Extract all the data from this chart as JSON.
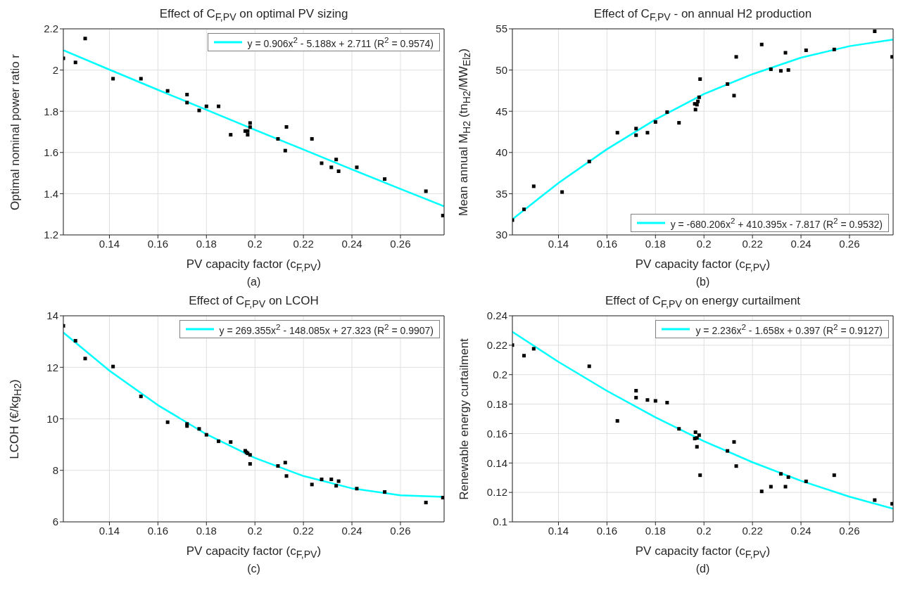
{
  "chart_data": [
    {
      "type": "scatter",
      "title": "Effect of C$_{F,PV}$ on optimal PV sizing",
      "xlabel": "PV capacity factor (c$_{F,PV}$)",
      "ylabel": "Optimal nominal power ratio r",
      "annotations": [
        "(a)"
      ],
      "xlim": [
        0.121,
        0.278
      ],
      "xticks": [
        0.14,
        0.16,
        0.18,
        0.2,
        0.22,
        0.24,
        0.26
      ],
      "ylim": [
        1.2,
        2.2
      ],
      "yticks": [
        1.2,
        1.4,
        1.6,
        1.8,
        2,
        2.2
      ],
      "grid": true,
      "legend": "top right",
      "series": [
        {
          "marker": "square",
          "color": "#000000",
          "x": [
            0.121,
            0.126,
            0.13,
            0.1415,
            0.153,
            0.164,
            0.172,
            0.172,
            0.177,
            0.18,
            0.185,
            0.19,
            0.196,
            0.197,
            0.197,
            0.198,
            0.198,
            0.2095,
            0.2125,
            0.213,
            0.2235,
            0.2275,
            0.2315,
            0.2335,
            0.2345,
            0.242,
            0.2535,
            0.2705,
            0.2775
          ],
          "values": [
            2.057,
            2.037,
            2.153,
            1.958,
            1.958,
            1.899,
            1.881,
            1.842,
            1.804,
            1.824,
            1.824,
            1.686,
            1.704,
            1.686,
            1.704,
            1.723,
            1.743,
            1.666,
            1.609,
            1.724,
            1.666,
            1.548,
            1.528,
            1.566,
            1.509,
            1.528,
            1.471,
            1.412,
            1.294
          ]
        },
        {
          "type": "line",
          "marker": "none",
          "name": "y  =  0.906x$^{2}$  -  5.188x  +  2.711  (R$^{2}$  =  0.9574)",
          "color": "#00ffff",
          "line_style": "solid",
          "x": [
            0.121,
            0.14,
            0.16,
            0.18,
            0.2,
            0.22,
            0.24,
            0.26,
            0.278
          ],
          "values": [
            2.096,
            2.002,
            1.904,
            1.807,
            1.71,
            1.614,
            1.518,
            1.423,
            1.339
          ]
        }
      ]
    },
    {
      "type": "scatter",
      "title": "Effect of C$_{F,PV}$ - on annual H2 production",
      "xlabel": "PV capacity factor (c$_{F,PV}$)",
      "ylabel": "Mean annual M$_{H2}$ (tn$_{H2}$/MW$_{Elz}$)",
      "annotations": [
        "(b)"
      ],
      "xlim": [
        0.121,
        0.278
      ],
      "xticks": [
        0.14,
        0.16,
        0.18,
        0.2,
        0.22,
        0.24,
        0.26
      ],
      "ylim": [
        30,
        55
      ],
      "yticks": [
        30,
        35,
        40,
        45,
        50,
        55
      ],
      "grid": true,
      "legend": "bottom right",
      "series": [
        {
          "marker": "square",
          "color": "#000000",
          "x": [
            0.121,
            0.1258,
            0.1298,
            0.1415,
            0.1527,
            0.1643,
            0.172,
            0.172,
            0.1767,
            0.18,
            0.1848,
            0.1897,
            0.1962,
            0.1965,
            0.1971,
            0.1975,
            0.198,
            0.1984,
            0.2097,
            0.2124,
            0.2133,
            0.2238,
            0.2276,
            0.2317,
            0.2336,
            0.2348,
            0.2421,
            0.2537,
            0.2704,
            0.2776
          ],
          "values": [
            31.8,
            33.1,
            35.9,
            35.2,
            38.9,
            42.4,
            42.9,
            42.1,
            42.4,
            43.7,
            44.9,
            43.6,
            45.9,
            45.2,
            45.8,
            46.2,
            46.7,
            48.9,
            48.3,
            46.9,
            51.6,
            53.1,
            50.1,
            49.9,
            52.1,
            50,
            52.4,
            52.5,
            54.7,
            51.6
          ]
        },
        {
          "type": "line",
          "marker": "none",
          "name": "y  =  -680.206x$^{2}$  +  410.395x  -  7.817  (R$^{2}$  =  0.9532)",
          "color": "#00ffff",
          "line_style": "solid",
          "x": [
            0.121,
            0.14,
            0.16,
            0.18,
            0.2,
            0.22,
            0.24,
            0.26,
            0.278
          ],
          "values": [
            31.9,
            36.3,
            40.4,
            44,
            47.1,
            49.5,
            51.5,
            52.9,
            53.7
          ]
        }
      ]
    },
    {
      "type": "scatter",
      "title": "Effect of C$_{F,PV}$ on LCOH",
      "xlabel": "PV capacity factor (c$_{F,PV}$)",
      "ylabel": "LCOH  (€/kg$_{H2}$)",
      "annotations": [
        "(c)"
      ],
      "xlim": [
        0.121,
        0.278
      ],
      "xticks": [
        0.14,
        0.16,
        0.18,
        0.2,
        0.22,
        0.24,
        0.26
      ],
      "ylim": [
        6,
        14
      ],
      "yticks": [
        6,
        8,
        10,
        12,
        14
      ],
      "grid": true,
      "legend": "top right",
      "series": [
        {
          "marker": "square",
          "color": "#000000",
          "x": [
            0.121,
            0.126,
            0.13,
            0.1415,
            0.153,
            0.164,
            0.172,
            0.172,
            0.177,
            0.18,
            0.185,
            0.19,
            0.196,
            0.1965,
            0.197,
            0.198,
            0.198,
            0.2095,
            0.2125,
            0.213,
            0.2235,
            0.2275,
            0.2315,
            0.2335,
            0.2345,
            0.242,
            0.2535,
            0.2705,
            0.2775
          ],
          "values": [
            13.61,
            13.03,
            12.34,
            12.03,
            10.87,
            9.87,
            9.8,
            9.72,
            9.61,
            9.38,
            9.13,
            9.1,
            8.76,
            8.7,
            8.66,
            8.6,
            8.25,
            8.17,
            8.3,
            7.78,
            7.45,
            7.65,
            7.65,
            7.4,
            7.58,
            7.29,
            7.16,
            6.75,
            6.94
          ]
        },
        {
          "type": "line",
          "marker": "none",
          "name": "y  =  269.355x$^{2}$  -  148.085x  +  27.323  (R$^{2}$  =  0.9907)",
          "color": "#00ffff",
          "line_style": "solid",
          "x": [
            0.121,
            0.14,
            0.16,
            0.18,
            0.2,
            0.22,
            0.24,
            0.26,
            0.278
          ],
          "values": [
            13.35,
            11.87,
            10.53,
            9.4,
            8.48,
            7.78,
            7.3,
            7.03,
            6.97
          ]
        }
      ]
    },
    {
      "type": "scatter",
      "title": "Effect of C$_{F,PV}$ on energy curtailment",
      "xlabel": "PV capacity factor (c$_{F,PV}$)",
      "ylabel": "Renewable energy curtailment",
      "annotations": [
        "(d)"
      ],
      "xlim": [
        0.121,
        0.278
      ],
      "xticks": [
        0.14,
        0.16,
        0.18,
        0.2,
        0.22,
        0.24,
        0.26
      ],
      "ylim": [
        0.1,
        0.24
      ],
      "yticks": [
        0.1,
        0.12,
        0.14,
        0.16,
        0.18,
        0.2,
        0.22,
        0.24
      ],
      "grid": true,
      "legend": "top right",
      "series": [
        {
          "marker": "square",
          "color": "#000000",
          "x": [
            0.121,
            0.1258,
            0.1298,
            0.1527,
            0.1643,
            0.172,
            0.172,
            0.1767,
            0.18,
            0.1848,
            0.1897,
            0.1965,
            0.1962,
            0.1971,
            0.198,
            0.1971,
            0.1984,
            0.2097,
            0.2124,
            0.2133,
            0.2238,
            0.2276,
            0.2317,
            0.2336,
            0.2348,
            0.2421,
            0.2537,
            0.2704,
            0.2776
          ],
          "values": [
            0.2201,
            0.2129,
            0.2176,
            0.2057,
            0.1686,
            0.1891,
            0.1844,
            0.1828,
            0.1822,
            0.181,
            0.1632,
            0.1609,
            0.1566,
            0.157,
            0.1589,
            0.151,
            0.1317,
            0.1482,
            0.1543,
            0.1379,
            0.1207,
            0.1239,
            0.1326,
            0.1239,
            0.1304,
            0.1275,
            0.1317,
            0.1148,
            0.1123
          ]
        },
        {
          "type": "line",
          "marker": "none",
          "name": "y  =  2.236x$^{2}$  -  1.658x  +  0.397  (R$^{2}$  =  0.9127)",
          "color": "#00ffff",
          "line_style": "solid",
          "x": [
            0.121,
            0.14,
            0.16,
            0.18,
            0.2,
            0.22,
            0.24,
            0.26,
            0.278
          ],
          "values": [
            0.2291,
            0.2087,
            0.189,
            0.171,
            0.1548,
            0.1405,
            0.1279,
            0.1171,
            0.1089
          ]
        }
      ]
    }
  ]
}
